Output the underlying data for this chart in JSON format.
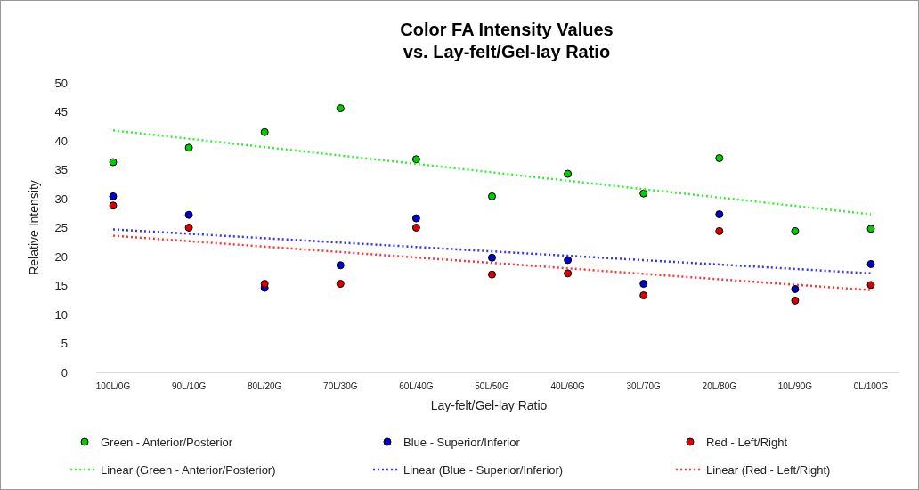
{
  "chart_data": {
    "type": "scatter",
    "title": "Color FA Intensity Values\nvs. Lay-felt/Gel-lay Ratio",
    "xlabel": "Lay-felt/Gel-lay Ratio",
    "ylabel": "Relative Intensity",
    "categories": [
      "100L/0G",
      "90L/10G",
      "80L/20G",
      "70L/30G",
      "60L/40G",
      "50L/50G",
      "40L/60G",
      "30L/70G",
      "20L/80G",
      "10L/90G",
      "0L/100G"
    ],
    "ylim": [
      0,
      50
    ],
    "yticks": [
      0,
      5,
      10,
      15,
      20,
      25,
      30,
      35,
      40,
      45,
      50
    ],
    "grid": false,
    "legend": "bottom",
    "marker": "circle",
    "series": [
      {
        "name": "Green - Anterior/Posterior",
        "color": "#00cc00",
        "values": [
          36.3,
          38.8,
          41.5,
          45.6,
          36.8,
          30.4,
          34.3,
          30.9,
          37.0,
          24.4,
          24.8
        ]
      },
      {
        "name": "Blue - Superior/Inferior",
        "color": "#0000cc",
        "values": [
          30.4,
          27.2,
          14.6,
          18.5,
          26.6,
          19.8,
          19.4,
          15.3,
          27.3,
          14.4,
          18.7
        ]
      },
      {
        "name": "Red - Left/Right",
        "color": "#dd0000",
        "values": [
          28.8,
          25.0,
          15.3,
          15.3,
          25.0,
          16.9,
          17.1,
          13.3,
          24.4,
          12.4,
          15.1
        ]
      },
      {
        "name": "Linear (Green - Anterior/Posterior)",
        "type": "line",
        "line_style": "dotted",
        "marker": "none",
        "color": "#33ee33",
        "x": [
          "100L/0G",
          "0L/100G"
        ],
        "values": [
          41.8,
          27.3
        ]
      },
      {
        "name": "Linear (Blue - Superior/Inferior)",
        "type": "line",
        "line_style": "dotted",
        "marker": "none",
        "color": "#3333ff",
        "x": [
          "100L/0G",
          "0L/100G"
        ],
        "values": [
          24.7,
          17.1
        ]
      },
      {
        "name": "Linear (Red - Left/Right)",
        "type": "line",
        "line_style": "dotted",
        "marker": "none",
        "color": "#ff3333",
        "x": [
          "100L/0G",
          "0L/100G"
        ],
        "values": [
          23.6,
          14.2
        ]
      }
    ]
  }
}
